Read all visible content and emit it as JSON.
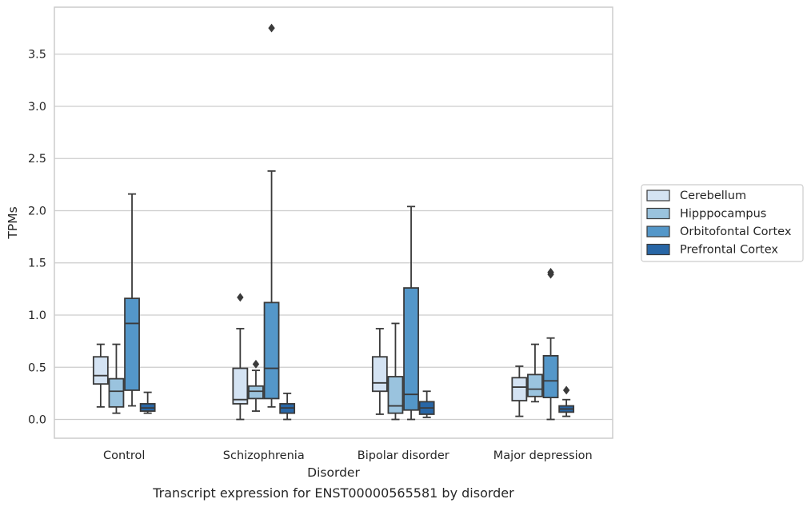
{
  "chart_data": {
    "type": "box",
    "title": "Transcript expression for ENST00000565581 by disorder",
    "xlabel": "Disorder",
    "ylabel": "TPMs",
    "ylim": [
      -0.18,
      3.95
    ],
    "yticks": [
      "0.0",
      "0.5",
      "1.0",
      "1.5",
      "2.0",
      "2.5",
      "3.0",
      "3.5"
    ],
    "ytick_values": [
      0.0,
      0.5,
      1.0,
      1.5,
      2.0,
      2.5,
      3.0,
      3.5
    ],
    "grid": "horizontal",
    "legend_position": "right",
    "categories": [
      "Control",
      "Schizophrenia",
      "Bipolar disorder",
      "Major depression"
    ],
    "series": [
      {
        "name": "Cerebellum",
        "color": "#d4e3f3",
        "boxes": [
          {
            "q1": 0.34,
            "median": 0.42,
            "q3": 0.6,
            "whislo": 0.12,
            "whishi": 0.72,
            "fliers": []
          },
          {
            "q1": 0.15,
            "median": 0.19,
            "q3": 0.49,
            "whislo": 0.0,
            "whishi": 0.87,
            "fliers": [
              1.17
            ]
          },
          {
            "q1": 0.27,
            "median": 0.35,
            "q3": 0.6,
            "whislo": 0.05,
            "whishi": 0.87,
            "fliers": []
          },
          {
            "q1": 0.18,
            "median": 0.31,
            "q3": 0.4,
            "whislo": 0.03,
            "whishi": 0.51,
            "fliers": []
          }
        ]
      },
      {
        "name": "Hipppocampus",
        "color": "#9ac3de",
        "boxes": [
          {
            "q1": 0.12,
            "median": 0.27,
            "q3": 0.39,
            "whislo": 0.06,
            "whishi": 0.72,
            "fliers": []
          },
          {
            "q1": 0.2,
            "median": 0.27,
            "q3": 0.32,
            "whislo": 0.08,
            "whishi": 0.47,
            "fliers": [
              0.53
            ]
          },
          {
            "q1": 0.06,
            "median": 0.13,
            "q3": 0.41,
            "whislo": 0.0,
            "whishi": 0.92,
            "fliers": []
          },
          {
            "q1": 0.22,
            "median": 0.29,
            "q3": 0.43,
            "whislo": 0.17,
            "whishi": 0.72,
            "fliers": []
          }
        ]
      },
      {
        "name": "Orbitofontal Cortex",
        "color": "#5497c9",
        "boxes": [
          {
            "q1": 0.28,
            "median": 0.92,
            "q3": 1.16,
            "whislo": 0.13,
            "whishi": 2.16,
            "fliers": []
          },
          {
            "q1": 0.2,
            "median": 0.49,
            "q3": 1.12,
            "whislo": 0.12,
            "whishi": 2.38,
            "fliers": [
              3.75
            ]
          },
          {
            "q1": 0.09,
            "median": 0.24,
            "q3": 1.26,
            "whislo": 0.0,
            "whishi": 2.04,
            "fliers": []
          },
          {
            "q1": 0.21,
            "median": 0.37,
            "q3": 0.61,
            "whislo": 0.0,
            "whishi": 0.78,
            "fliers": [
              1.39,
              1.41
            ]
          }
        ]
      },
      {
        "name": "Prefrontal Cortex",
        "color": "#2866a6",
        "boxes": [
          {
            "q1": 0.08,
            "median": 0.11,
            "q3": 0.15,
            "whislo": 0.06,
            "whishi": 0.26,
            "fliers": []
          },
          {
            "q1": 0.06,
            "median": 0.11,
            "q3": 0.15,
            "whislo": 0.0,
            "whishi": 0.25,
            "fliers": []
          },
          {
            "q1": 0.05,
            "median": 0.11,
            "q3": 0.17,
            "whislo": 0.02,
            "whishi": 0.27,
            "fliers": []
          },
          {
            "q1": 0.07,
            "median": 0.1,
            "q3": 0.13,
            "whislo": 0.03,
            "whishi": 0.19,
            "fliers": [
              0.28
            ]
          }
        ]
      }
    ]
  }
}
